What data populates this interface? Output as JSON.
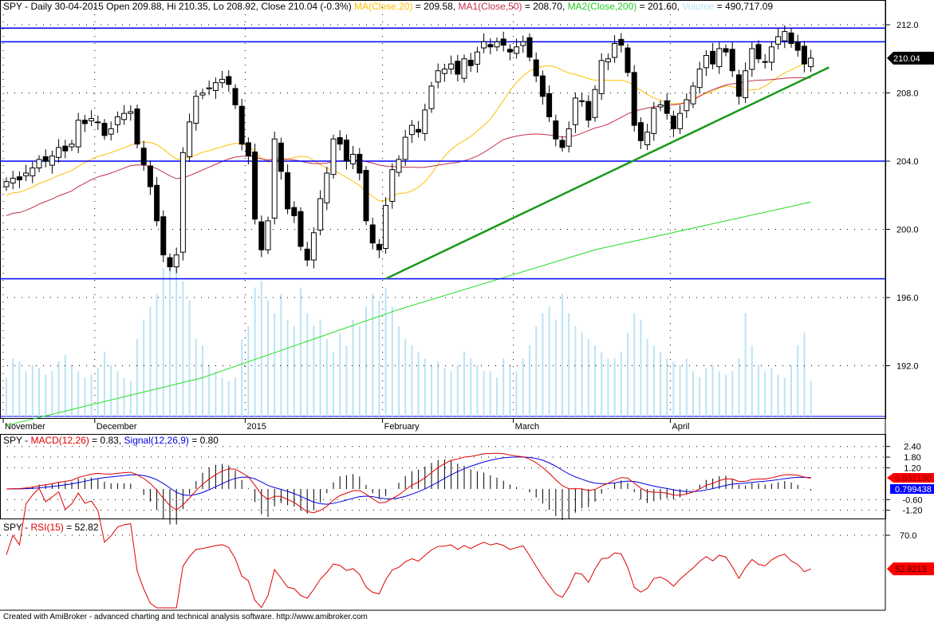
{
  "header": {
    "symbol": "SPY",
    "text": "SPY - Daily 30-04-2015 Open 209.88, Hi 210.35, Lo 208.92, Close 210.04 (-0.3%)",
    "ma20": "MA(Close,20)",
    "ma20_val": " = 209.58, ",
    "ma50": "MA1(Close,50)",
    "ma50_val": " = 208.70, ",
    "ma200": "MA2(Close,200)",
    "ma200_val": " = 201.60, ",
    "volume": "Volume",
    "volume_val": " = 490,717.09"
  },
  "macd_header": {
    "prefix": "SPY - ",
    "macd": "MACD(12,26)",
    "macd_val": " = 0.83, ",
    "signal": "Signal(12,26,9)",
    "signal_val": " = 0.80"
  },
  "rsi_header": {
    "prefix": "SPY - ",
    "rsi": "RSI(15)",
    "rsi_val": " = 52.82"
  },
  "footer": "Created with AmiBroker - advanced charting and technical analysis software. http://www.amibroker.com",
  "colors": {
    "up": "#ffffff",
    "down": "#000000",
    "ma20": "#ffc000",
    "ma50": "#c0304a",
    "ma200": "#22dd22",
    "volume": "#b8e4f5",
    "hline": "#0000ff",
    "trend": "#1a9a1a",
    "macd": "#e00000",
    "signal": "#0000e0",
    "rsi": "#e00000"
  },
  "chart_data": [
    {
      "type": "candlestick",
      "title": "SPY - Daily",
      "ylim": [
        188,
        213
      ],
      "y_ticks": [
        192,
        196,
        200,
        204,
        208,
        212
      ],
      "x_labels": [
        {
          "label": "November",
          "index": 0
        },
        {
          "label": "December",
          "index": 14
        },
        {
          "label": "2015",
          "index": 37
        },
        {
          "label": "February",
          "index": 58
        },
        {
          "label": "March",
          "index": 78
        },
        {
          "label": "April",
          "index": 102
        }
      ],
      "last_close_label": "210.04",
      "close": [
        202.8,
        203.0,
        202.9,
        203.3,
        203.6,
        204.1,
        204.0,
        204.3,
        204.8,
        204.6,
        205.0,
        206.4,
        206.2,
        206.5,
        206.3,
        205.5,
        205.9,
        206.6,
        206.8,
        206.9,
        205.0,
        203.8,
        202.5,
        200.5,
        198.5,
        197.8,
        198.5,
        204.5,
        206.3,
        207.8,
        208.0,
        208.3,
        208.6,
        208.8,
        208.5,
        207.3,
        205.0,
        204.3,
        200.6,
        198.8,
        200.5,
        205.3,
        203.4,
        201.2,
        200.8,
        199.0,
        198.2,
        199.8,
        201.8,
        203.3,
        205.3,
        205.0,
        204.0,
        204.4,
        203.3,
        200.5,
        199.2,
        198.8,
        201.4,
        203.5,
        204.1,
        205.4,
        206.1,
        205.7,
        207.0,
        208.4,
        209.3,
        209.4,
        209.7,
        209.1,
        210.0,
        209.6,
        210.4,
        211.0,
        210.7,
        211.0,
        210.8,
        210.4,
        210.7,
        211.0,
        210.1,
        209.0,
        207.8,
        206.6,
        205.3,
        204.8,
        205.9,
        207.7,
        207.5,
        206.4,
        208.2,
        209.9,
        210.0,
        210.9,
        210.8,
        209.2,
        206.1,
        205.2,
        205.7,
        207.1,
        207.3,
        206.8,
        205.9,
        206.8,
        207.6,
        208.4,
        209.4,
        210.2,
        209.7,
        210.6,
        210.4,
        209.3,
        207.8,
        209.3,
        210.6,
        210.0,
        209.8,
        210.7,
        211.3,
        211.6,
        210.9,
        210.5,
        209.7,
        210.04
      ],
      "volume_millions": [
        60,
        90,
        85,
        70,
        80,
        75,
        65,
        70,
        85,
        95,
        80,
        70,
        60,
        65,
        75,
        100,
        80,
        70,
        60,
        55,
        120,
        150,
        170,
        190,
        230,
        240,
        250,
        210,
        180,
        120,
        110,
        80,
        70,
        60,
        55,
        60,
        120,
        140,
        200,
        210,
        180,
        160,
        190,
        150,
        140,
        200,
        160,
        140,
        150,
        120,
        100,
        130,
        110,
        150,
        140,
        170,
        190,
        180,
        200,
        170,
        140,
        120,
        110,
        100,
        90,
        80,
        85,
        75,
        70,
        80,
        100,
        90,
        80,
        70,
        70,
        60,
        90,
        80,
        70,
        90,
        110,
        140,
        160,
        170,
        150,
        190,
        160,
        140,
        130,
        120,
        110,
        100,
        90,
        90,
        100,
        130,
        160,
        150,
        120,
        110,
        100,
        90,
        85,
        80,
        90,
        70,
        60,
        75,
        80,
        70,
        65,
        70,
        90,
        160,
        110,
        80,
        70,
        75,
        65,
        60,
        80,
        110,
        130,
        55
      ],
      "ma200_points": [
        {
          "index": 0,
          "value": 188.5
        },
        {
          "index": 30,
          "value": 191.3
        },
        {
          "index": 60,
          "value": 195.3
        },
        {
          "index": 90,
          "value": 198.8
        },
        {
          "index": 123,
          "value": 201.6
        }
      ],
      "horizontal_lines": [
        211.8,
        211.0,
        204.0,
        197.1
      ],
      "trendline": {
        "from": {
          "index": 58,
          "value": 197.1
        },
        "to": {
          "index": 127,
          "value": 209.5
        }
      }
    },
    {
      "type": "line",
      "title": "MACD(12,26)",
      "y_ticks": [
        2.4,
        1.8,
        1.2,
        -0.6,
        -1.2
      ],
      "series": [
        {
          "name": "MACD(12,26)",
          "last": "0.832138"
        },
        {
          "name": "Signal(12,26,9)",
          "last": "0.799438"
        }
      ]
    },
    {
      "type": "line",
      "title": "RSI(15)",
      "y_ticks": [
        70.0
      ],
      "series": [
        {
          "name": "RSI(15)",
          "last": "52.8213"
        }
      ]
    }
  ]
}
